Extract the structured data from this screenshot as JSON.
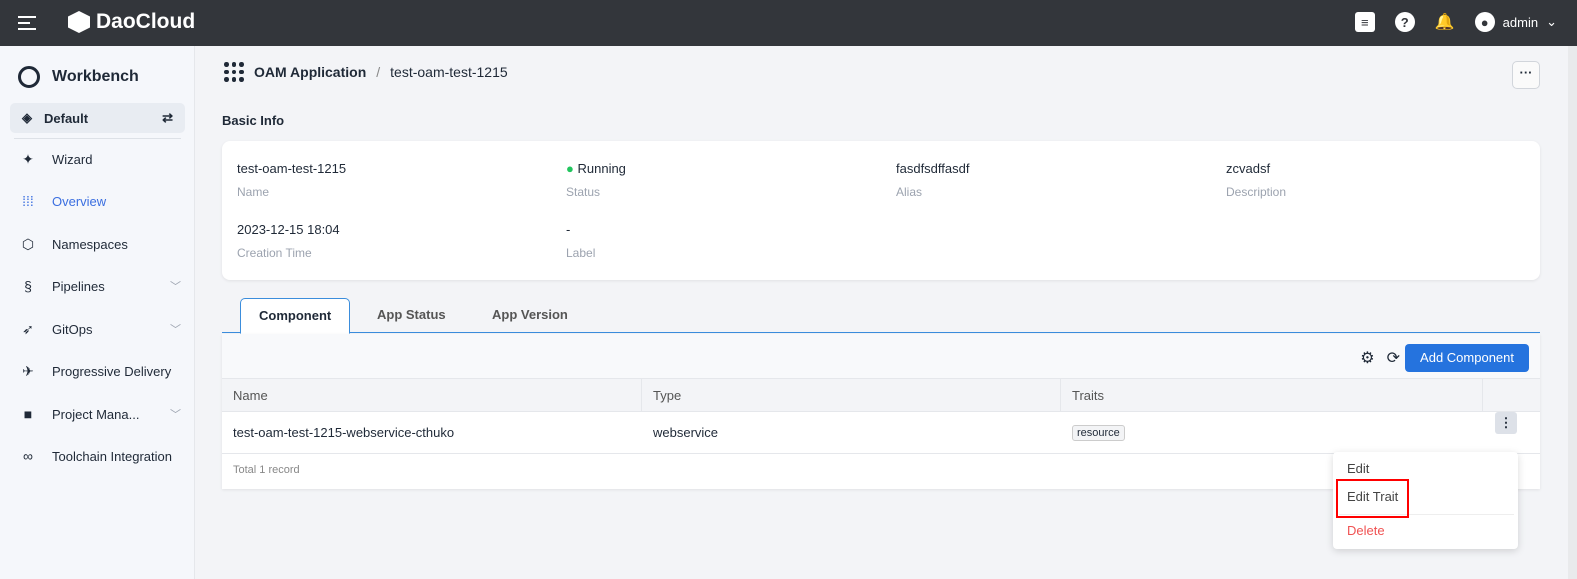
{
  "header": {
    "brand": "DaoCloud",
    "user": "admin"
  },
  "sidebar": {
    "title": "Workbench",
    "workspace": "Default",
    "items": [
      {
        "label": "Wizard",
        "icon": "wand-icon"
      },
      {
        "label": "Overview",
        "icon": "grid-icon",
        "active": true
      },
      {
        "label": "Namespaces",
        "icon": "cube-icon"
      },
      {
        "label": "Pipelines",
        "icon": "pipeline-icon",
        "expandable": true
      },
      {
        "label": "GitOps",
        "icon": "rocket-icon",
        "expandable": true
      },
      {
        "label": "Progressive Delivery",
        "icon": "bird-icon"
      },
      {
        "label": "Project Mana...",
        "icon": "folder-icon",
        "expandable": true
      },
      {
        "label": "Toolchain Integration",
        "icon": "infinity-icon"
      }
    ]
  },
  "breadcrumb": {
    "parent": "OAM Application",
    "sep": "/",
    "current": "test-oam-test-1215"
  },
  "basic": {
    "title": "Basic Info",
    "fields": [
      {
        "value": "test-oam-test-1215",
        "label": "Name"
      },
      {
        "value": "Running",
        "label": "Status"
      },
      {
        "value": "fasdfsdffasdf",
        "label": "Alias"
      },
      {
        "value": "zcvadsf",
        "label": "Description"
      },
      {
        "value": "2023-12-15 18:04",
        "label": "Creation Time"
      },
      {
        "value": "-",
        "label": "Label"
      }
    ]
  },
  "tabs": [
    "Component",
    "App Status",
    "App Version"
  ],
  "table": {
    "add_label": "Add Component",
    "columns": [
      "Name",
      "Type",
      "Traits"
    ],
    "rows": [
      {
        "name": "test-oam-test-1215-webservice-cthuko",
        "type": "webservice",
        "trait": "resource"
      }
    ],
    "total": "Total 1 record"
  },
  "menu": {
    "items": [
      "Edit",
      "Edit Trait",
      "Delete"
    ]
  },
  "colors": {
    "primary": "#2573de",
    "danger": "#f05252",
    "running": "#22c55e"
  }
}
